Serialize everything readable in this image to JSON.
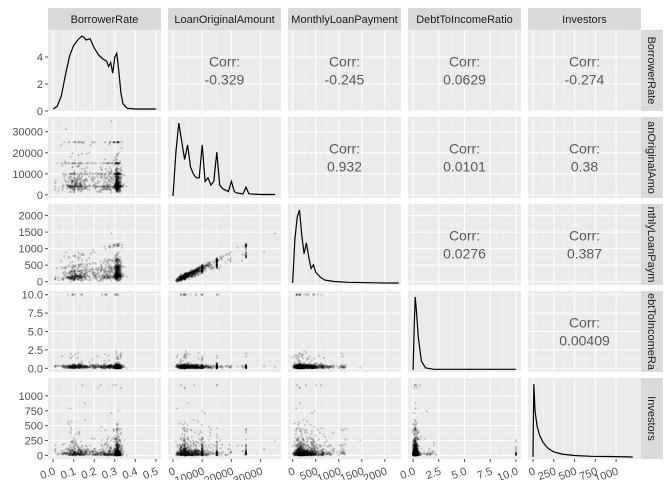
{
  "chart_data": {
    "type": "scatter-matrix",
    "variables": [
      "BorrowerRate",
      "LoanOriginalAmount",
      "MonthlyLoanPayment",
      "DebtToIncomeRatio",
      "Investors"
    ],
    "row_strip_labels": [
      "BorrowerRate",
      "anOriginalAmo",
      "nthlyLoanPaym",
      "ebtToIncomeRa",
      "Investors"
    ],
    "corr_label": "Corr:",
    "correlations": [
      {
        "row": 0,
        "col": 1,
        "value": "-0.329"
      },
      {
        "row": 0,
        "col": 2,
        "value": "-0.245"
      },
      {
        "row": 0,
        "col": 3,
        "value": "0.0629"
      },
      {
        "row": 0,
        "col": 4,
        "value": "-0.274"
      },
      {
        "row": 1,
        "col": 2,
        "value": "0.932"
      },
      {
        "row": 1,
        "col": 3,
        "value": "0.0101"
      },
      {
        "row": 1,
        "col": 4,
        "value": "0.38"
      },
      {
        "row": 2,
        "col": 3,
        "value": "0.0276"
      },
      {
        "row": 2,
        "col": 4,
        "value": "0.387"
      },
      {
        "row": 3,
        "col": 4,
        "value": "0.00409"
      }
    ],
    "y_axes": [
      {
        "row": 0,
        "ticks": [
          0,
          2,
          4
        ],
        "range": [
          0,
          6
        ]
      },
      {
        "row": 1,
        "ticks": [
          0,
          10000,
          20000,
          30000
        ],
        "range": [
          -1500,
          37000
        ]
      },
      {
        "row": 2,
        "ticks": [
          0,
          500,
          1000,
          1500,
          2000
        ],
        "range": [
          -100,
          2350
        ]
      },
      {
        "row": 3,
        "ticks": [
          0.0,
          2.5,
          5.0,
          7.5,
          10.0
        ],
        "tick_labels": [
          "0.0",
          "2.5",
          "5.0",
          "7.5",
          "10.0"
        ],
        "range": [
          -0.5,
          10.5
        ]
      },
      {
        "row": 4,
        "ticks": [
          0,
          250,
          500,
          750,
          1000
        ],
        "range": [
          -60,
          1300
        ]
      }
    ],
    "x_axes": [
      {
        "col": 0,
        "ticks": [
          0.0,
          0.1,
          0.2,
          0.3,
          0.4,
          0.5
        ],
        "tick_labels": [
          "0.0",
          "0.1",
          "0.2",
          "0.3",
          "0.4",
          "0.5"
        ],
        "range": [
          -0.025,
          0.525
        ]
      },
      {
        "col": 1,
        "ticks": [
          0,
          10000,
          20000,
          30000
        ],
        "range": [
          -1700,
          37000
        ]
      },
      {
        "col": 2,
        "ticks": [
          0,
          500,
          1000,
          1500,
          2000
        ],
        "range": [
          -100,
          2350
        ]
      },
      {
        "col": 3,
        "ticks": [
          0.0,
          2.5,
          5.0,
          7.5,
          10.0
        ],
        "tick_labels": [
          "0.0",
          "2.5",
          "5.0",
          "7.5",
          "10.0"
        ],
        "range": [
          -0.5,
          10.5
        ]
      },
      {
        "col": 4,
        "ticks": [
          0,
          250,
          500,
          750,
          1000
        ],
        "range": [
          -60,
          1300
        ]
      }
    ],
    "densities": [
      {
        "var": "BorrowerRate",
        "x": [
          0.0,
          0.02,
          0.04,
          0.06,
          0.08,
          0.1,
          0.12,
          0.14,
          0.15,
          0.16,
          0.18,
          0.2,
          0.22,
          0.24,
          0.26,
          0.27,
          0.28,
          0.29,
          0.3,
          0.31,
          0.32,
          0.33,
          0.34,
          0.36,
          0.4,
          0.5
        ],
        "y": [
          0,
          0.2,
          1.0,
          2.6,
          4.0,
          4.8,
          5.2,
          5.5,
          5.4,
          5.2,
          5.3,
          4.6,
          4.1,
          3.8,
          3.6,
          3.2,
          3.5,
          2.7,
          3.9,
          4.2,
          2.8,
          1.2,
          0.4,
          0.05,
          0,
          0
        ]
      },
      {
        "var": "LoanOriginalAmount",
        "x": [
          0,
          1000,
          2000,
          3000,
          4000,
          5000,
          6000,
          7000,
          8000,
          9000,
          10000,
          11000,
          12000,
          13000,
          14000,
          15000,
          16000,
          17000,
          18000,
          19000,
          20000,
          21000,
          22000,
          24000,
          25000,
          26000,
          30000,
          35000
        ],
        "y": [
          0,
          0.6,
          1.0,
          0.75,
          0.5,
          0.7,
          0.4,
          0.3,
          0.25,
          0.25,
          0.7,
          0.2,
          0.25,
          0.15,
          0.2,
          0.6,
          0.15,
          0.1,
          0.08,
          0.06,
          0.2,
          0.06,
          0.04,
          0.03,
          0.12,
          0.03,
          0.02,
          0.02
        ]
      },
      {
        "var": "MonthlyLoanPayment",
        "x": [
          0,
          50,
          100,
          150,
          200,
          250,
          300,
          350,
          400,
          450,
          500,
          600,
          700,
          900,
          1200,
          2000,
          2300
        ],
        "y": [
          0,
          0.6,
          0.9,
          1.0,
          0.65,
          0.4,
          0.55,
          0.35,
          0.2,
          0.25,
          0.15,
          0.08,
          0.04,
          0.02,
          0.01,
          0,
          0
        ]
      },
      {
        "var": "DebtToIncomeRatio",
        "x": [
          0,
          0.1,
          0.2,
          0.3,
          0.5,
          0.8,
          1.2,
          2.0,
          10.0
        ],
        "y": [
          0,
          0.6,
          1.0,
          0.85,
          0.45,
          0.12,
          0.03,
          0.01,
          0.01
        ]
      },
      {
        "var": "Investors",
        "x": [
          0,
          10,
          25,
          50,
          80,
          120,
          180,
          250,
          350,
          500,
          700,
          1000,
          1200
        ],
        "y": [
          0,
          1.0,
          0.62,
          0.42,
          0.3,
          0.2,
          0.12,
          0.07,
          0.04,
          0.02,
          0.01,
          0.005,
          0
        ]
      }
    ]
  }
}
